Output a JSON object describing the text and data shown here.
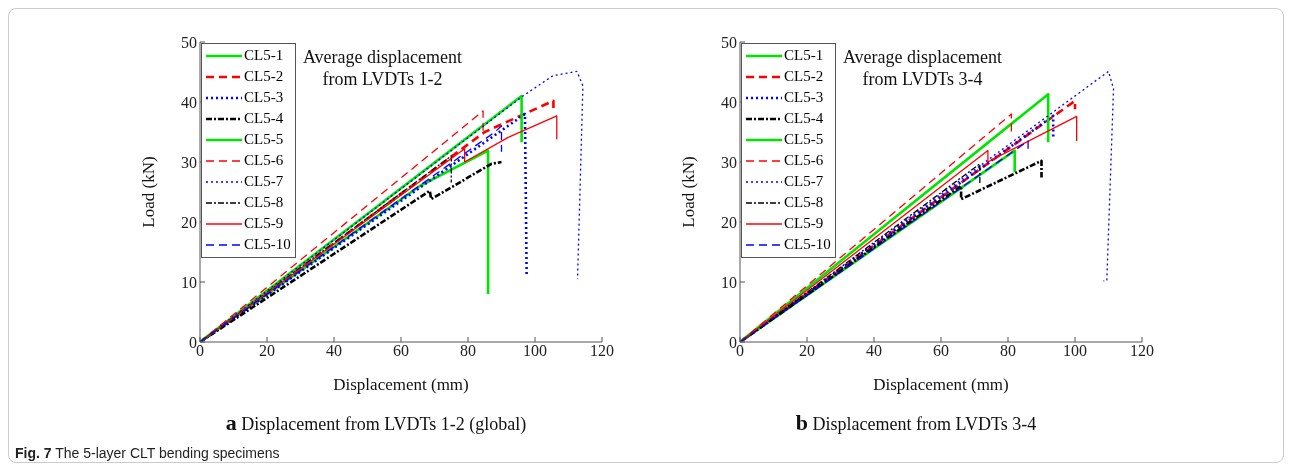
{
  "chart_data": [
    {
      "type": "line",
      "title": "a Displacement from LVDTs 1-2 (global)",
      "xlabel": "Displacement (mm)",
      "ylabel": "Load (kN)",
      "annotations": [
        "Average displacement from LVDTs 1-2",
        "Fig. 7 The 5-layer CLT bending specimens"
      ],
      "xlim": [
        0,
        120
      ],
      "xticks": [
        0,
        20,
        40,
        60,
        80,
        100,
        120
      ],
      "ylim": [
        0,
        50
      ],
      "yticks": [
        0,
        10,
        20,
        30,
        40,
        50
      ],
      "grid": false,
      "legend": "top left",
      "marker": "none",
      "series": [
        {
          "name": "CL5-1",
          "color": "#00e600",
          "line_style": "solid",
          "x": [
            0,
            65.6,
            86,
            86
          ],
          "values": [
            0,
            26,
            31.9,
            8
          ]
        },
        {
          "name": "CL5-2",
          "color": "#ff0000",
          "line_style": "dashed",
          "x": [
            0,
            85,
            105.5,
            105.5
          ],
          "values": [
            0,
            35,
            40.2,
            39
          ]
        },
        {
          "name": "CL5-3",
          "color": "#0000ff",
          "line_style": "dotted",
          "x": [
            0,
            97,
            97.5
          ],
          "values": [
            0,
            38,
            11.3
          ]
        },
        {
          "name": "CL5-4",
          "color": "#000000",
          "line_style": "dashdot",
          "x": [
            0,
            68.6,
            69,
            87,
            90
          ],
          "values": [
            0,
            25.2,
            23.8,
            29.7,
            30
          ]
        },
        {
          "name": "CL5-5",
          "color": "#00e600",
          "line_style": "solid",
          "x": [
            0,
            96,
            96
          ],
          "values": [
            0,
            41,
            33.3
          ]
        },
        {
          "name": "CL5-6",
          "color": "#ff0000",
          "line_style": "dashed",
          "x": [
            0,
            84.5,
            84.5
          ],
          "values": [
            0,
            38.5,
            34.4
          ]
        },
        {
          "name": "CL5-7",
          "color": "#0000ff",
          "line_style": "dotted",
          "x": [
            0,
            96.4,
            105.4,
            112.5,
            114.3,
            112.7
          ],
          "values": [
            0,
            41,
            44.4,
            45.1,
            42.7,
            10.5
          ]
        },
        {
          "name": "CL5-8",
          "color": "#000000",
          "line_style": "dashdot",
          "x": [
            0,
            75,
            75
          ],
          "values": [
            0,
            31,
            26.6
          ]
        },
        {
          "name": "CL5-9",
          "color": "#ff0000",
          "line_style": "solid",
          "x": [
            0,
            79,
            79,
            92,
            106.5,
            106.5
          ],
          "values": [
            0,
            32.2,
            30,
            34.1,
            37.7,
            33.8
          ]
        },
        {
          "name": "CL5-10",
          "color": "#0000ff",
          "line_style": "dashed",
          "x": [
            0,
            88,
            90,
            90
          ],
          "values": [
            0,
            35,
            36,
            31.7
          ]
        }
      ]
    },
    {
      "type": "line",
      "title": "b Displacement from LVDTs 3-4",
      "xlabel": "Displacement (mm)",
      "ylabel": "Load (kN)",
      "annotations": [
        "Average displacement from LVDTs 3-4"
      ],
      "xlim": [
        0,
        120
      ],
      "xticks": [
        0,
        20,
        40,
        60,
        80,
        100,
        120
      ],
      "ylim": [
        0,
        50
      ],
      "yticks": [
        0,
        10,
        20,
        30,
        40,
        50
      ],
      "grid": false,
      "legend": "top left",
      "marker": "none",
      "series": [
        {
          "name": "CL5-1",
          "color": "#00e600",
          "line_style": "solid",
          "x": [
            0,
            82,
            82
          ],
          "values": [
            0,
            31.9,
            28.3
          ]
        },
        {
          "name": "CL5-2",
          "color": "#ff0000",
          "line_style": "dashed",
          "x": [
            0,
            100,
            100
          ],
          "values": [
            0,
            40.2,
            38.8
          ]
        },
        {
          "name": "CL5-3",
          "color": "#0000ff",
          "line_style": "dotted",
          "x": [
            0,
            93.5,
            93.5
          ],
          "values": [
            0,
            37.7,
            33.8
          ]
        },
        {
          "name": "CL5-4",
          "color": "#000000",
          "line_style": "dashdot",
          "x": [
            0,
            66,
            66,
            90,
            90
          ],
          "values": [
            0,
            26,
            23.8,
            30.2,
            27.4
          ]
        },
        {
          "name": "CL5-5",
          "color": "#00e600",
          "line_style": "solid",
          "x": [
            0,
            92,
            92
          ],
          "values": [
            0,
            41.3,
            33.3
          ]
        },
        {
          "name": "CL5-6",
          "color": "#ff0000",
          "line_style": "dashed",
          "x": [
            0,
            81,
            81
          ],
          "values": [
            0,
            38,
            35
          ]
        },
        {
          "name": "CL5-7",
          "color": "#0000ff",
          "line_style": "dotted",
          "x": [
            0,
            110,
            111.5,
            109.5,
            108.5
          ],
          "values": [
            0,
            45.1,
            42.2,
            10.2,
            10.2
          ]
        },
        {
          "name": "CL5-8",
          "color": "#000000",
          "line_style": "dashdot",
          "x": [
            0,
            71.6,
            71.6
          ],
          "values": [
            0,
            29.7,
            26.5
          ]
        },
        {
          "name": "CL5-9",
          "color": "#ff0000",
          "line_style": "solid",
          "x": [
            0,
            74,
            74,
            100.5,
            100.5
          ],
          "values": [
            0,
            31.9,
            30,
            37.6,
            33.5
          ]
        },
        {
          "name": "CL5-10",
          "color": "#0000ff",
          "line_style": "dashed",
          "x": [
            0,
            86,
            86
          ],
          "values": [
            0,
            33.5,
            32
          ]
        }
      ]
    }
  ]
}
